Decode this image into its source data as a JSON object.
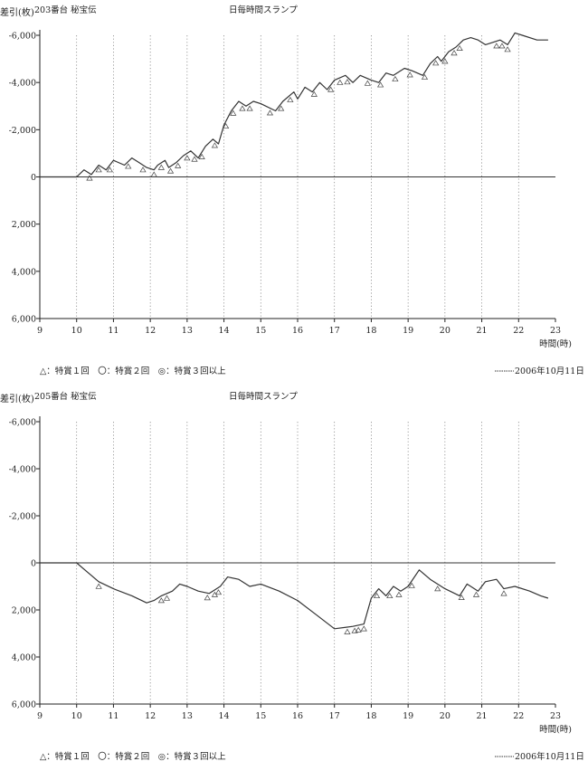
{
  "chart_data": [
    {
      "type": "line",
      "machine_label": "203番台 秘宝伝",
      "title": "日毎時間スランプ",
      "ylabel": "差引(枚)",
      "xlabel": "時間(時)",
      "xlim": [
        9,
        23
      ],
      "ylim": [
        6000,
        -6000
      ],
      "x_ticks": [
        "9",
        "10",
        "11",
        "12",
        "13",
        "14",
        "15",
        "16",
        "17",
        "18",
        "19",
        "20",
        "21",
        "22",
        "23"
      ],
      "y_ticks": [
        "-6,000",
        "-4,000",
        "-2,000",
        "0",
        "2,000",
        "4,000",
        "6,000"
      ],
      "grid": "vertical dotted lines at each hour",
      "legend_left": "△：特賞１回　〇：特賞２回　◎：特賞３回以上",
      "legend_right": "2006年10月11日",
      "series": [
        {
          "name": "2006年10月11日",
          "x": [
            9,
            10,
            10.2,
            10.4,
            10.6,
            10.8,
            11.0,
            11.3,
            11.5,
            11.7,
            11.9,
            12.1,
            12.2,
            12.4,
            12.5,
            12.7,
            12.9,
            13.1,
            13.3,
            13.5,
            13.7,
            13.85,
            14.0,
            14.2,
            14.4,
            14.6,
            14.8,
            15.0,
            15.4,
            15.6,
            15.9,
            16.0,
            16.2,
            16.4,
            16.6,
            16.8,
            17.0,
            17.3,
            17.5,
            17.7,
            18.0,
            18.2,
            18.4,
            18.6,
            18.9,
            19.1,
            19.4,
            19.6,
            19.8,
            19.9,
            20.1,
            20.3,
            20.5,
            20.7,
            20.9,
            21.1,
            21.3,
            21.5,
            21.7,
            21.9,
            22.1,
            22.5,
            22.8
          ],
          "y": [
            0,
            0,
            -300,
            -100,
            -500,
            -300,
            -700,
            -500,
            -800,
            -600,
            -400,
            -300,
            -500,
            -700,
            -400,
            -600,
            -900,
            -1100,
            -800,
            -1300,
            -1600,
            -1400,
            -2200,
            -2800,
            -3200,
            -3000,
            -3200,
            -3100,
            -2800,
            -3200,
            -3600,
            -3300,
            -3800,
            -3600,
            -4000,
            -3700,
            -4100,
            -4300,
            -4000,
            -4300,
            -4100,
            -4000,
            -4400,
            -4300,
            -4600,
            -4500,
            -4300,
            -4800,
            -5100,
            -4900,
            -5300,
            -5500,
            -5800,
            -5900,
            -5800,
            -5600,
            -5700,
            -5800,
            -5600,
            -6100,
            -6000,
            -5800,
            -5800
          ]
        }
      ],
      "bonus_markers": [
        10.35,
        10.6,
        10.9,
        11.4,
        11.8,
        12.1,
        12.3,
        12.55,
        12.75,
        13.0,
        13.2,
        13.4,
        13.75,
        14.05,
        14.25,
        14.5,
        14.7,
        15.25,
        15.55,
        15.8,
        16.45,
        16.9,
        17.15,
        17.35,
        17.9,
        18.25,
        18.65,
        19.05,
        19.45,
        19.75,
        20.0,
        20.25,
        20.4,
        21.4,
        21.55,
        21.7
      ]
    },
    {
      "type": "line",
      "machine_label": "205番台 秘宝伝",
      "title": "日毎時間スランプ",
      "ylabel": "差引(枚)",
      "xlabel": "時間(時)",
      "xlim": [
        9,
        23
      ],
      "ylim": [
        6000,
        -6000
      ],
      "x_ticks": [
        "9",
        "10",
        "11",
        "12",
        "13",
        "14",
        "15",
        "16",
        "17",
        "18",
        "19",
        "20",
        "21",
        "22",
        "23"
      ],
      "y_ticks": [
        "-6,000",
        "-4,000",
        "-2,000",
        "0",
        "2,000",
        "4,000",
        "6,000"
      ],
      "grid": "vertical dotted lines at each hour",
      "legend_left": "△：特賞１回　〇：特賞２回　◎：特賞３回以上",
      "legend_right": "2006年10月11日",
      "series": [
        {
          "name": "2006年10月11日",
          "x": [
            9,
            10,
            10.3,
            10.6,
            11.0,
            11.5,
            11.9,
            12.1,
            12.3,
            12.6,
            12.8,
            13.0,
            13.3,
            13.6,
            13.9,
            14.1,
            14.4,
            14.7,
            15.0,
            15.5,
            16.0,
            16.5,
            17.0,
            17.5,
            17.8,
            18.0,
            18.2,
            18.4,
            18.6,
            18.8,
            19.0,
            19.3,
            19.6,
            20.0,
            20.4,
            20.6,
            20.9,
            21.1,
            21.4,
            21.6,
            21.9,
            22.3,
            22.6,
            22.8
          ],
          "y": [
            0,
            0,
            400,
            800,
            1100,
            1400,
            1700,
            1600,
            1400,
            1200,
            900,
            1000,
            1200,
            1300,
            1000,
            600,
            700,
            1000,
            900,
            1200,
            1600,
            2200,
            2800,
            2700,
            2600,
            1500,
            1100,
            1400,
            1000,
            1200,
            1000,
            300,
            700,
            1100,
            1400,
            900,
            1200,
            800,
            700,
            1100,
            1000,
            1200,
            1400,
            1500
          ]
        }
      ],
      "bonus_markers": [
        10.6,
        12.3,
        12.45,
        13.55,
        13.75,
        13.85,
        17.35,
        17.55,
        17.65,
        17.8,
        18.15,
        18.5,
        18.75,
        19.1,
        19.8,
        20.45,
        20.85,
        21.6
      ]
    }
  ]
}
